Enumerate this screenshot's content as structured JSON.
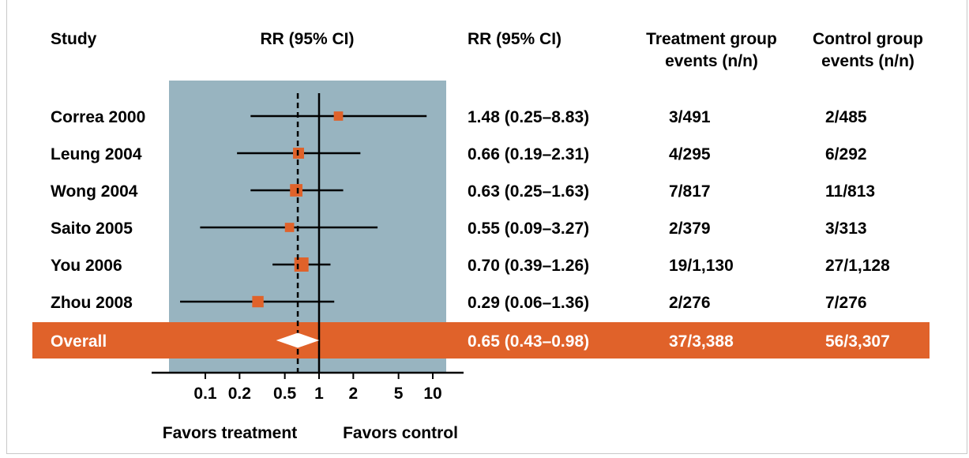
{
  "headers": {
    "study": "Study",
    "plot": "RR (95% CI)",
    "rr": "RR (95% CI)",
    "treatment_line1": "Treatment group",
    "treatment_line2": "events (n/n)",
    "control_line1": "Control group",
    "control_line2": "events (n/n)"
  },
  "footer": {
    "favors_treatment": "Favors treatment",
    "favors_control": "Favors control"
  },
  "colors": {
    "panel": "#98b4c0",
    "marker": "#e0622a",
    "overall_band": "#e0622a",
    "line": "#000000"
  },
  "chart_data": {
    "type": "forest",
    "scale": "log",
    "xlim": [
      0.035,
      14
    ],
    "ticks": [
      {
        "value": 0.1,
        "label": "0.1"
      },
      {
        "value": 0.2,
        "label": "0.2"
      },
      {
        "value": 0.5,
        "label": "0.5"
      },
      {
        "value": 1,
        "label": "1"
      },
      {
        "value": 2,
        "label": "2"
      },
      {
        "value": 5,
        "label": "5"
      },
      {
        "value": 10,
        "label": "10"
      }
    ],
    "null_line": 1,
    "overall_line": 0.65,
    "studies": [
      {
        "name": "Correa 2000",
        "rr": 1.48,
        "lo": 0.25,
        "hi": 8.83,
        "rr_text": "1.48 (0.25–8.83)",
        "treatment": "3/491",
        "control": "2/485",
        "weight": 0.3
      },
      {
        "name": "Leung 2004",
        "rr": 0.66,
        "lo": 0.19,
        "hi": 2.31,
        "rr_text": "0.66 (0.19–2.31)",
        "treatment": "4/295",
        "control": "6/292",
        "weight": 0.55
      },
      {
        "name": "Wong 2004",
        "rr": 0.63,
        "lo": 0.25,
        "hi": 1.63,
        "rr_text": "0.63 (0.25–1.63)",
        "treatment": "7/817",
        "control": "11/813",
        "weight": 0.75
      },
      {
        "name": "Saito 2005",
        "rr": 0.55,
        "lo": 0.09,
        "hi": 3.27,
        "rr_text": "0.55 (0.09–3.27)",
        "treatment": "2/379",
        "control": "3/313",
        "weight": 0.3
      },
      {
        "name": "You 2006",
        "rr": 0.7,
        "lo": 0.39,
        "hi": 1.26,
        "rr_text": "0.70 (0.39–1.26)",
        "treatment": "19/1,130",
        "control": "27/1,128",
        "weight": 1.0
      },
      {
        "name": "Zhou 2008",
        "rr": 0.29,
        "lo": 0.06,
        "hi": 1.36,
        "rr_text": "0.29 (0.06–1.36)",
        "treatment": "2/276",
        "control": "7/276",
        "weight": 0.6
      }
    ],
    "overall": {
      "name": "Overall",
      "rr": 0.65,
      "lo": 0.43,
      "hi": 0.98,
      "rr_text": "0.65 (0.43–0.98)",
      "treatment": "37/3,388",
      "control": "56/3,307"
    }
  }
}
